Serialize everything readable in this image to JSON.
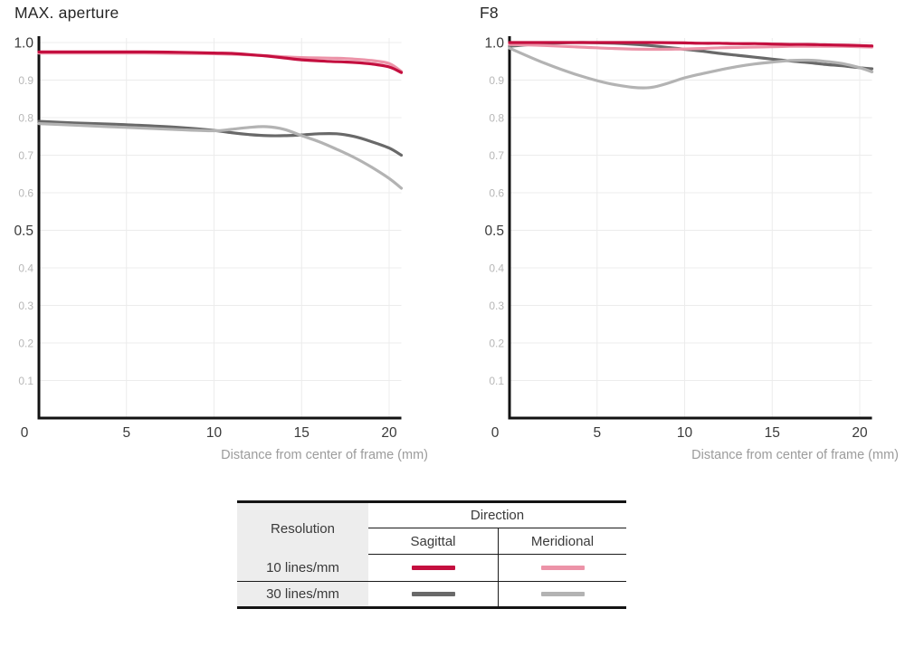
{
  "page": {
    "background": "#ffffff"
  },
  "colors": {
    "sagittal_10": "#c40f3f",
    "meridional_10": "#ec93a8",
    "sagittal_30": "#696969",
    "meridional_30": "#b3b3b3",
    "grid": "#ececec",
    "axis": "#121212",
    "tick_major": "#3a3a3a",
    "tick_minor": "#b7b7b7",
    "caption": "#9c9c9c",
    "table_shade": "#ededed"
  },
  "chart_data": [
    {
      "type": "line",
      "title": "MAX. aperture",
      "xlabel": "Distance from center of frame (mm)",
      "ylabel": "",
      "xlim": [
        0,
        20.7
      ],
      "ylim": [
        0,
        1.0
      ],
      "grid": true,
      "x_ticks": [
        {
          "label": "0",
          "value": 0
        },
        {
          "label": "5",
          "value": 5
        },
        {
          "label": "10",
          "value": 10
        },
        {
          "label": "15",
          "value": 15
        },
        {
          "label": "20",
          "value": 20
        }
      ],
      "y_ticks_major": [
        {
          "label": "1.0",
          "value": 1.0
        },
        {
          "label": "0.5",
          "value": 0.5
        }
      ],
      "y_ticks_minor": [
        {
          "label": "0.9",
          "value": 0.9
        },
        {
          "label": "0.8",
          "value": 0.8
        },
        {
          "label": "0.7",
          "value": 0.7
        },
        {
          "label": "0.6",
          "value": 0.6
        },
        {
          "label": "0.4",
          "value": 0.4
        },
        {
          "label": "0.3",
          "value": 0.3
        },
        {
          "label": "0.2",
          "value": 0.2
        },
        {
          "label": "0.1",
          "value": 0.1
        }
      ],
      "x": [
        0,
        2,
        4,
        6,
        8,
        10,
        11,
        12,
        13,
        14,
        15,
        16,
        17,
        18,
        19,
        20,
        20.7
      ],
      "series": [
        {
          "name": "30 lines/mm Sagittal",
          "color_key": "sagittal_30",
          "values": [
            0.79,
            0.786,
            0.783,
            0.779,
            0.774,
            0.766,
            0.76,
            0.755,
            0.752,
            0.752,
            0.754,
            0.757,
            0.757,
            0.75,
            0.736,
            0.719,
            0.7
          ]
        },
        {
          "name": "30 lines/mm Meridional",
          "color_key": "meridional_30",
          "values": [
            0.784,
            0.78,
            0.776,
            0.772,
            0.768,
            0.765,
            0.769,
            0.774,
            0.776,
            0.769,
            0.752,
            0.736,
            0.716,
            0.694,
            0.668,
            0.638,
            0.612
          ]
        },
        {
          "name": "10 lines/mm Meridional",
          "color_key": "meridional_10",
          "values": [
            0.972,
            0.972,
            0.972,
            0.972,
            0.971,
            0.97,
            0.969,
            0.967,
            0.965,
            0.962,
            0.96,
            0.959,
            0.958,
            0.956,
            0.952,
            0.944,
            0.923
          ]
        },
        {
          "name": "10 lines/mm Sagittal",
          "color_key": "sagittal_10",
          "values": [
            0.975,
            0.975,
            0.975,
            0.975,
            0.974,
            0.972,
            0.971,
            0.968,
            0.964,
            0.959,
            0.954,
            0.951,
            0.949,
            0.947,
            0.943,
            0.935,
            0.92
          ]
        }
      ]
    },
    {
      "type": "line",
      "title": "F8",
      "xlabel": "Distance from center of frame (mm)",
      "ylabel": "",
      "xlim": [
        0,
        20.7
      ],
      "ylim": [
        0,
        1.0
      ],
      "grid": true,
      "x_ticks": [
        {
          "label": "0",
          "value": 0
        },
        {
          "label": "5",
          "value": 5
        },
        {
          "label": "10",
          "value": 10
        },
        {
          "label": "15",
          "value": 15
        },
        {
          "label": "20",
          "value": 20
        }
      ],
      "y_ticks_major": [
        {
          "label": "1.0",
          "value": 1.0
        },
        {
          "label": "0.5",
          "value": 0.5
        }
      ],
      "y_ticks_minor": [
        {
          "label": "0.9",
          "value": 0.9
        },
        {
          "label": "0.8",
          "value": 0.8
        },
        {
          "label": "0.7",
          "value": 0.7
        },
        {
          "label": "0.6",
          "value": 0.6
        },
        {
          "label": "0.4",
          "value": 0.4
        },
        {
          "label": "0.3",
          "value": 0.3
        },
        {
          "label": "0.2",
          "value": 0.2
        },
        {
          "label": "0.1",
          "value": 0.1
        }
      ],
      "x": [
        0,
        2,
        4,
        6,
        8,
        10,
        11,
        12,
        13,
        14,
        15,
        16,
        17,
        18,
        19,
        20,
        20.7
      ],
      "series": [
        {
          "name": "30 lines/mm Sagittal",
          "color_key": "sagittal_30",
          "values": [
            0.99,
            0.997,
            1.0,
            0.998,
            0.992,
            0.982,
            0.977,
            0.971,
            0.966,
            0.961,
            0.956,
            0.951,
            0.947,
            0.942,
            0.938,
            0.933,
            0.93
          ]
        },
        {
          "name": "30 lines/mm Meridional",
          "color_key": "meridional_30",
          "values": [
            0.985,
            0.945,
            0.912,
            0.888,
            0.88,
            0.906,
            0.917,
            0.927,
            0.936,
            0.943,
            0.948,
            0.952,
            0.953,
            0.95,
            0.944,
            0.933,
            0.922
          ]
        },
        {
          "name": "10 lines/mm Meridional",
          "color_key": "meridional_10",
          "values": [
            0.995,
            0.992,
            0.988,
            0.984,
            0.982,
            0.983,
            0.984,
            0.986,
            0.987,
            0.988,
            0.989,
            0.99,
            0.99,
            0.99,
            0.99,
            0.989,
            0.988
          ]
        },
        {
          "name": "10 lines/mm Sagittal",
          "color_key": "sagittal_10",
          "values": [
            1.0,
            1.0,
            1.0,
            1.0,
            1.0,
            0.999,
            0.998,
            0.998,
            0.997,
            0.997,
            0.996,
            0.995,
            0.995,
            0.994,
            0.993,
            0.992,
            0.991
          ]
        }
      ]
    }
  ],
  "legend_table": {
    "resolution_header": "Resolution",
    "direction_header": "Direction",
    "sagittal_header": "Sagittal",
    "meridional_header": "Meridional",
    "rows": [
      {
        "label": "10 lines/mm",
        "sagittal_key": "sagittal_10",
        "meridional_key": "meridional_10"
      },
      {
        "label": "30 lines/mm",
        "sagittal_key": "sagittal_30",
        "meridional_key": "meridional_30"
      }
    ]
  }
}
